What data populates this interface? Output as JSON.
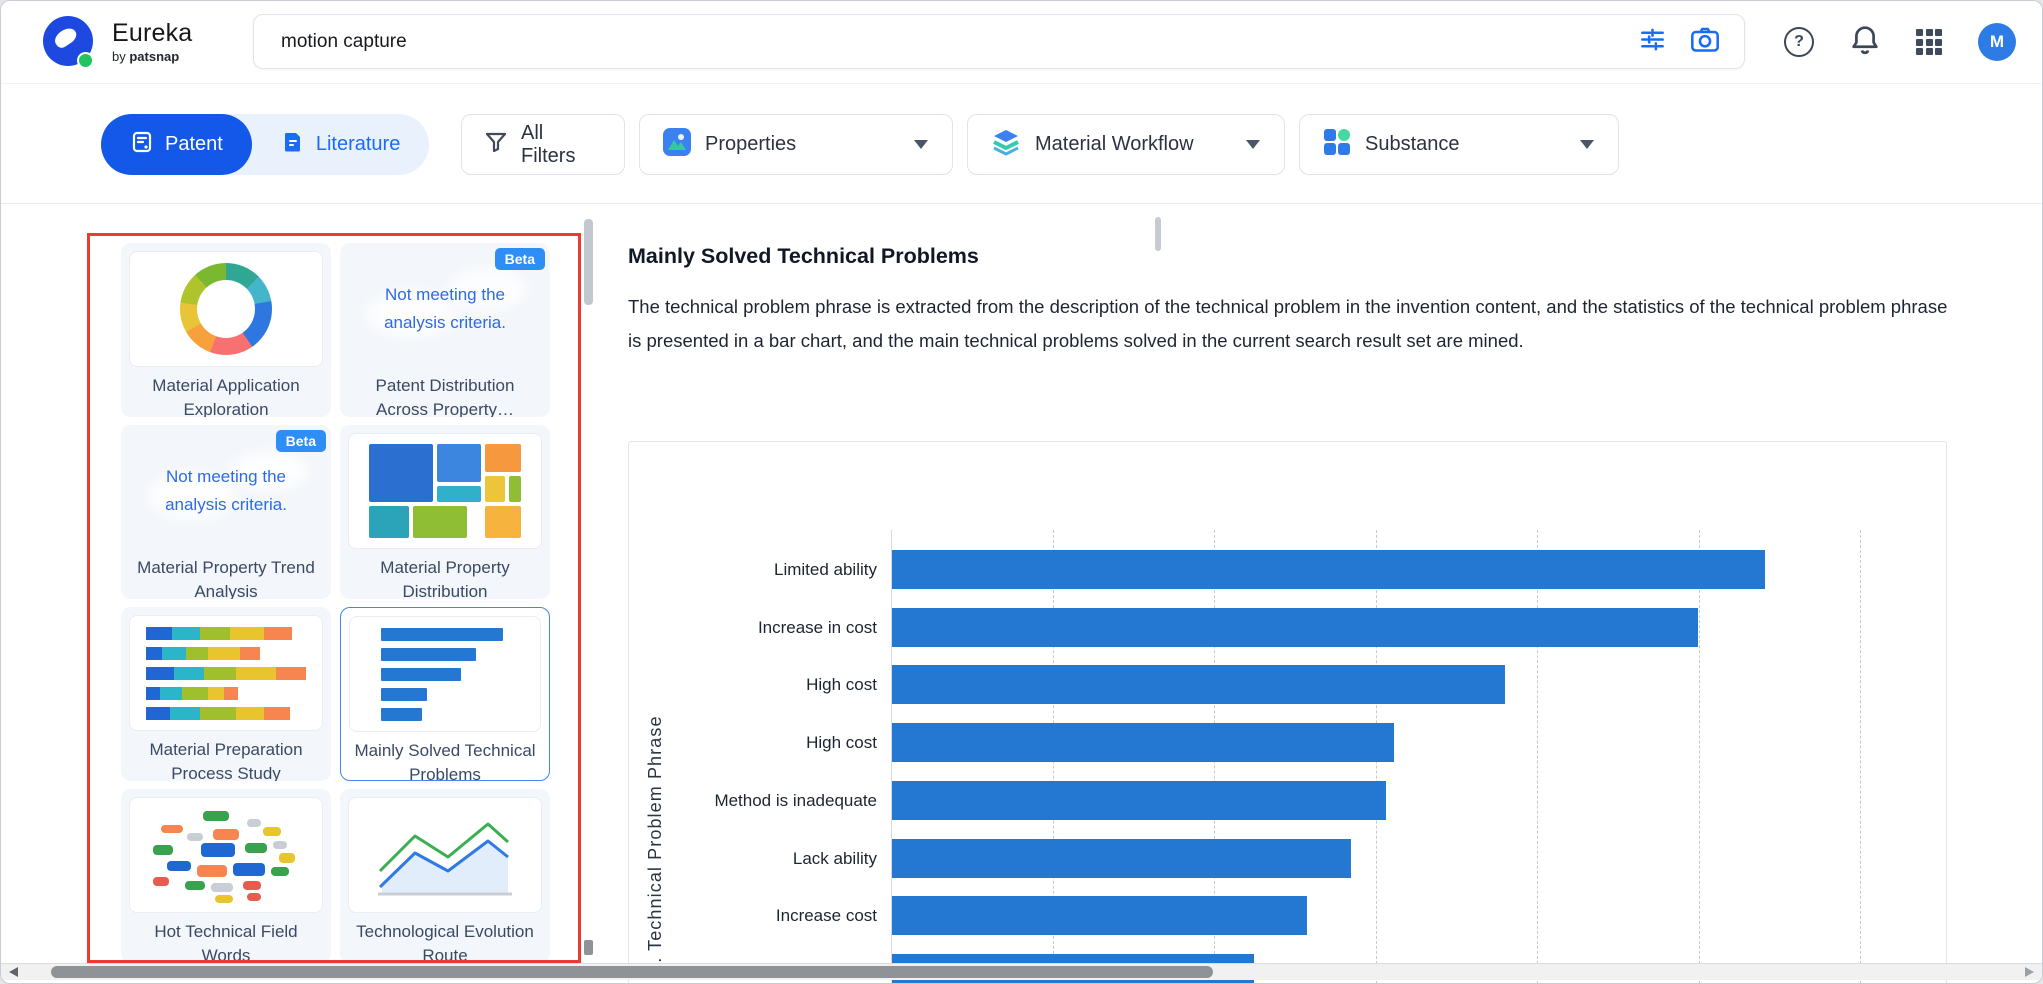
{
  "header": {
    "logo": {
      "brand": "Eureka",
      "byline_prefix": "by",
      "byline_brand": "patsnap"
    },
    "search": {
      "value": "motion capture"
    },
    "avatar_initial": "M"
  },
  "filter_bar": {
    "patent_label": "Patent",
    "literature_label": "Literature",
    "all_filters_label": "All Filters",
    "properties_label": "Properties",
    "material_workflow_label": "Material Workflow",
    "substance_label": "Substance"
  },
  "sidebar": {
    "beta_badge": "Beta",
    "cards": [
      {
        "id": "material-application-exploration",
        "label": "Material Application Exploration",
        "icon": "donut",
        "beta": false,
        "selected": false
      },
      {
        "id": "patent-distribution-across-property",
        "label": "Patent Distribution Across Property…",
        "icon": "message",
        "beta": true,
        "selected": false,
        "message": "Not meeting the analysis criteria."
      },
      {
        "id": "material-property-trend-analysis",
        "label": "Material Property Trend Analysis",
        "icon": "message",
        "beta": true,
        "selected": false,
        "message": "Not meeting the analysis criteria."
      },
      {
        "id": "material-property-distribution",
        "label": "Material Property Distribution",
        "icon": "treemap",
        "beta": false,
        "selected": false
      },
      {
        "id": "material-preparation-process-study",
        "label": "Material Preparation Process Study",
        "icon": "stacked-bars",
        "beta": false,
        "selected": false
      },
      {
        "id": "mainly-solved-technical-problems",
        "label": "Mainly Solved Technical Problems",
        "icon": "bar-chart",
        "beta": false,
        "selected": true
      },
      {
        "id": "hot-technical-field-words",
        "label": "Hot Technical Field Words",
        "icon": "word-cloud",
        "beta": false,
        "selected": false
      },
      {
        "id": "technological-evolution-route",
        "label": "Technological Evolution Route",
        "icon": "line-chart",
        "beta": false,
        "selected": false
      }
    ]
  },
  "main": {
    "title": "Mainly Solved Technical Problems",
    "description": "The technical problem phrase is extracted from the description of the technical problem in the invention content, and the statistics of the technical problem phrase is presented in a bar chart, and the main technical problems solved in the current search result set are mined."
  },
  "chart_data": {
    "type": "bar",
    "orientation": "horizontal",
    "title": "Mainly Solved Technical Problems",
    "categories": [
      "Limited ability",
      "Increase in cost",
      "High cost",
      "High cost",
      "Method is inadequate",
      "Lack ability",
      "Increase cost",
      ""
    ],
    "values": [
      873,
      806,
      613,
      502,
      494,
      459,
      415,
      362
    ],
    "value_unit": "bar length in screen px; numeric x-axis tick labels are not visible (chart clipped at viewport bottom)",
    "xlim": [
      0,
      1058
    ],
    "xlabel": "",
    "ylabel": "td. Technical Problem Phrase",
    "ylabel_note": "rotated vertical label, truncated by viewport bottom (full text likely 'Std. Technical Problem Phrase')",
    "bar_color": "#2478d2",
    "grid": "vertical dashed gridlines, spacing ~161px, axis line solid at 0",
    "last_bar_note": "8th bar only partially visible, clipped by the bottom scrollbar/viewport"
  },
  "colors": {
    "accent_blue": "#1358e8",
    "link_blue": "#1a6cf5",
    "bar_blue": "#2478d2",
    "annotation_red": "#ec3b31",
    "beta_badge_blue": "#2f8ef5",
    "avatar_blue": "#2d7be5"
  }
}
